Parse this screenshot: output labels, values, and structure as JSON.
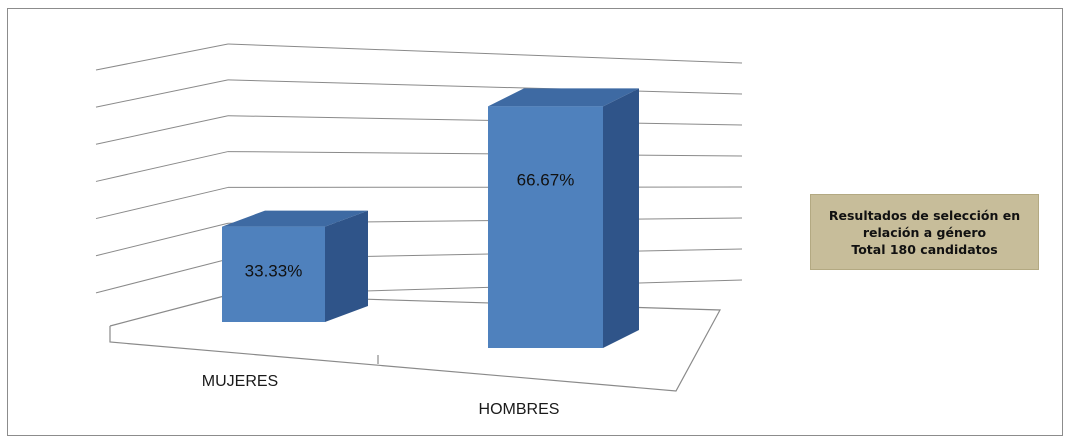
{
  "chart_data": {
    "type": "bar",
    "style": "3d-column",
    "categories": [
      "MUJERES",
      "HOMBRES"
    ],
    "values": [
      33.33,
      66.67
    ],
    "data_labels": [
      "33.33%",
      "66.67%"
    ],
    "grid": true,
    "legend": "none",
    "ylim": [
      0,
      80
    ],
    "colors": {
      "bar_front": "#4f81bd",
      "bar_side": "#2f5489",
      "bar_top": "#3e6aa3"
    }
  },
  "note": {
    "lines": [
      "Resultados de selección en",
      "relación a género",
      "Total 180 candidatos"
    ],
    "background": "#c7bd9a"
  }
}
